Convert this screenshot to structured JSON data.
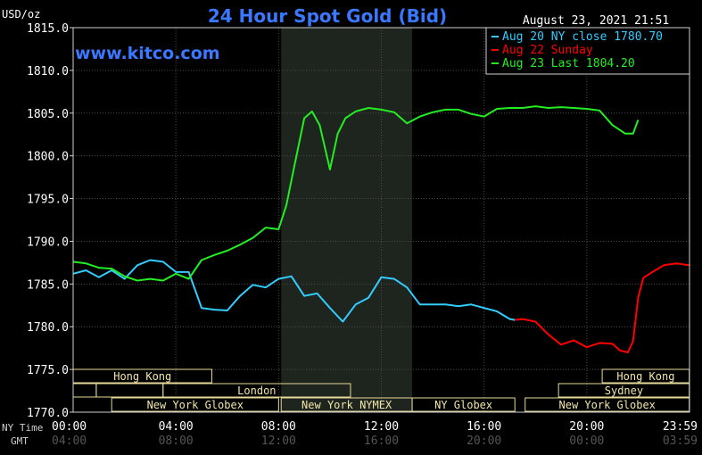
{
  "chart_data": {
    "type": "line",
    "title": "24 Hour Spot Gold (Bid)",
    "ylabel": "USD/oz",
    "datetime": "August 23, 2021 21:51",
    "website": "www.kitco.com",
    "ylim": [
      1770,
      1815
    ],
    "yticks": [
      "1815.0",
      "1810.0",
      "1805.0",
      "1800.0",
      "1795.0",
      "1790.0",
      "1785.0",
      "1780.0",
      "1775.0",
      "1770.0"
    ],
    "xlim": [
      0,
      24
    ],
    "row_labels": {
      "ny": "NY Time",
      "gmt": "GMT"
    },
    "xticks_ny": [
      "00:00",
      "04:00",
      "08:00",
      "12:00",
      "16:00",
      "20:00",
      "23:59"
    ],
    "xticks_gmt": [
      "04:00",
      "08:00",
      "12:00",
      "16:00",
      "20:00",
      "00:00",
      "03:59"
    ],
    "shaded_range": [
      8.1,
      13.2
    ],
    "legend": [
      {
        "text": "Aug 20 NY close 1780.70",
        "color": "#33ccff"
      },
      {
        "text": "Aug 22 Sunday",
        "color": "#ff0000"
      },
      {
        "text": "Aug 23 Last 1804.20",
        "color": "#22ee22"
      }
    ],
    "sessions": [
      {
        "label": "Hong Kong",
        "row": 1,
        "start": 0,
        "end": 5.4
      },
      {
        "label": "",
        "row": 2,
        "start": 0,
        "end": 0.9
      },
      {
        "label": "",
        "row": 2,
        "start": 0.9,
        "end": 3.5
      },
      {
        "label": "London",
        "row": 2,
        "start": 3.5,
        "end": 10.8
      },
      {
        "label": "New York Globex",
        "row": 3,
        "start": 1.5,
        "end": 8.0
      },
      {
        "label": "New York NYMEX",
        "row": 3,
        "start": 8.1,
        "end": 13.2
      },
      {
        "label": "NY Globex",
        "row": 3,
        "start": 13.2,
        "end": 17.2
      },
      {
        "label": "Hong Kong",
        "row": 1,
        "start": 20.6,
        "end": 23.99
      },
      {
        "label": "Sydney",
        "row": 2,
        "start": 18.9,
        "end": 23.99
      },
      {
        "label": "New York Globex",
        "row": 3,
        "start": 17.6,
        "end": 23.99
      }
    ],
    "series": [
      {
        "name": "Aug 20 NY close 1780.70",
        "color": "#33ccff",
        "x": [
          0,
          0.5,
          1,
          1.5,
          2,
          2.5,
          3,
          3.5,
          4,
          4.5,
          5,
          5.5,
          6,
          6.5,
          7,
          7.5,
          8,
          8.5,
          9,
          9.5,
          10,
          10.5,
          11,
          11.5,
          12,
          12.5,
          13,
          13.5,
          14,
          14.5,
          15,
          15.5,
          16,
          16.5,
          17,
          17.2
        ],
        "y": [
          1786.2,
          1786.6,
          1785.8,
          1786.6,
          1785.6,
          1787.2,
          1787.8,
          1787.6,
          1786.4,
          1786.4,
          1782.2,
          1782.0,
          1781.9,
          1783.6,
          1784.9,
          1784.6,
          1785.6,
          1785.9,
          1783.6,
          1783.9,
          1782.2,
          1780.6,
          1782.6,
          1783.4,
          1785.8,
          1785.6,
          1784.6,
          1782.6,
          1782.6,
          1782.6,
          1782.4,
          1782.6,
          1782.2,
          1781.8,
          1780.9,
          1780.8
        ]
      },
      {
        "name": "Aug 22 Sunday",
        "color": "#ff0000",
        "x": [
          17.2,
          17.5,
          18,
          18.5,
          19,
          19.5,
          20,
          20.5,
          21,
          21.3,
          21.6,
          21.8,
          22,
          22.2,
          22.5,
          23,
          23.5,
          23.99
        ],
        "y": [
          1780.8,
          1780.9,
          1780.6,
          1779.1,
          1777.9,
          1778.4,
          1777.6,
          1778.1,
          1778.0,
          1777.2,
          1777.0,
          1778.3,
          1783.4,
          1785.7,
          1786.3,
          1787.2,
          1787.4,
          1787.2
        ]
      },
      {
        "name": "Aug 23 Last 1804.20",
        "color": "#22ee22",
        "x": [
          0,
          0.5,
          1,
          1.5,
          2,
          2.5,
          3,
          3.5,
          4,
          4.5,
          5,
          5.5,
          6,
          6.5,
          7,
          7.5,
          8,
          8.3,
          8.6,
          9,
          9.3,
          9.6,
          10,
          10.3,
          10.6,
          11,
          11.5,
          12,
          12.5,
          13,
          13.5,
          14,
          14.5,
          15,
          15.5,
          16,
          16.5,
          17,
          17.5,
          18,
          18.5,
          19,
          19.5,
          20,
          20.5,
          21,
          21.5,
          21.8,
          22
        ],
        "y": [
          1787.6,
          1787.4,
          1786.9,
          1786.8,
          1785.9,
          1785.4,
          1785.6,
          1785.4,
          1786.2,
          1785.6,
          1787.8,
          1788.4,
          1788.9,
          1789.6,
          1790.4,
          1791.6,
          1791.4,
          1794.2,
          1798.6,
          1804.4,
          1805.2,
          1803.6,
          1798.4,
          1802.6,
          1804.4,
          1805.2,
          1805.6,
          1805.4,
          1805.1,
          1803.8,
          1804.6,
          1805.1,
          1805.4,
          1805.4,
          1804.9,
          1804.6,
          1805.5,
          1805.6,
          1805.6,
          1805.8,
          1805.6,
          1805.7,
          1805.6,
          1805.5,
          1805.3,
          1803.6,
          1802.6,
          1802.6,
          1804.2
        ]
      }
    ]
  }
}
